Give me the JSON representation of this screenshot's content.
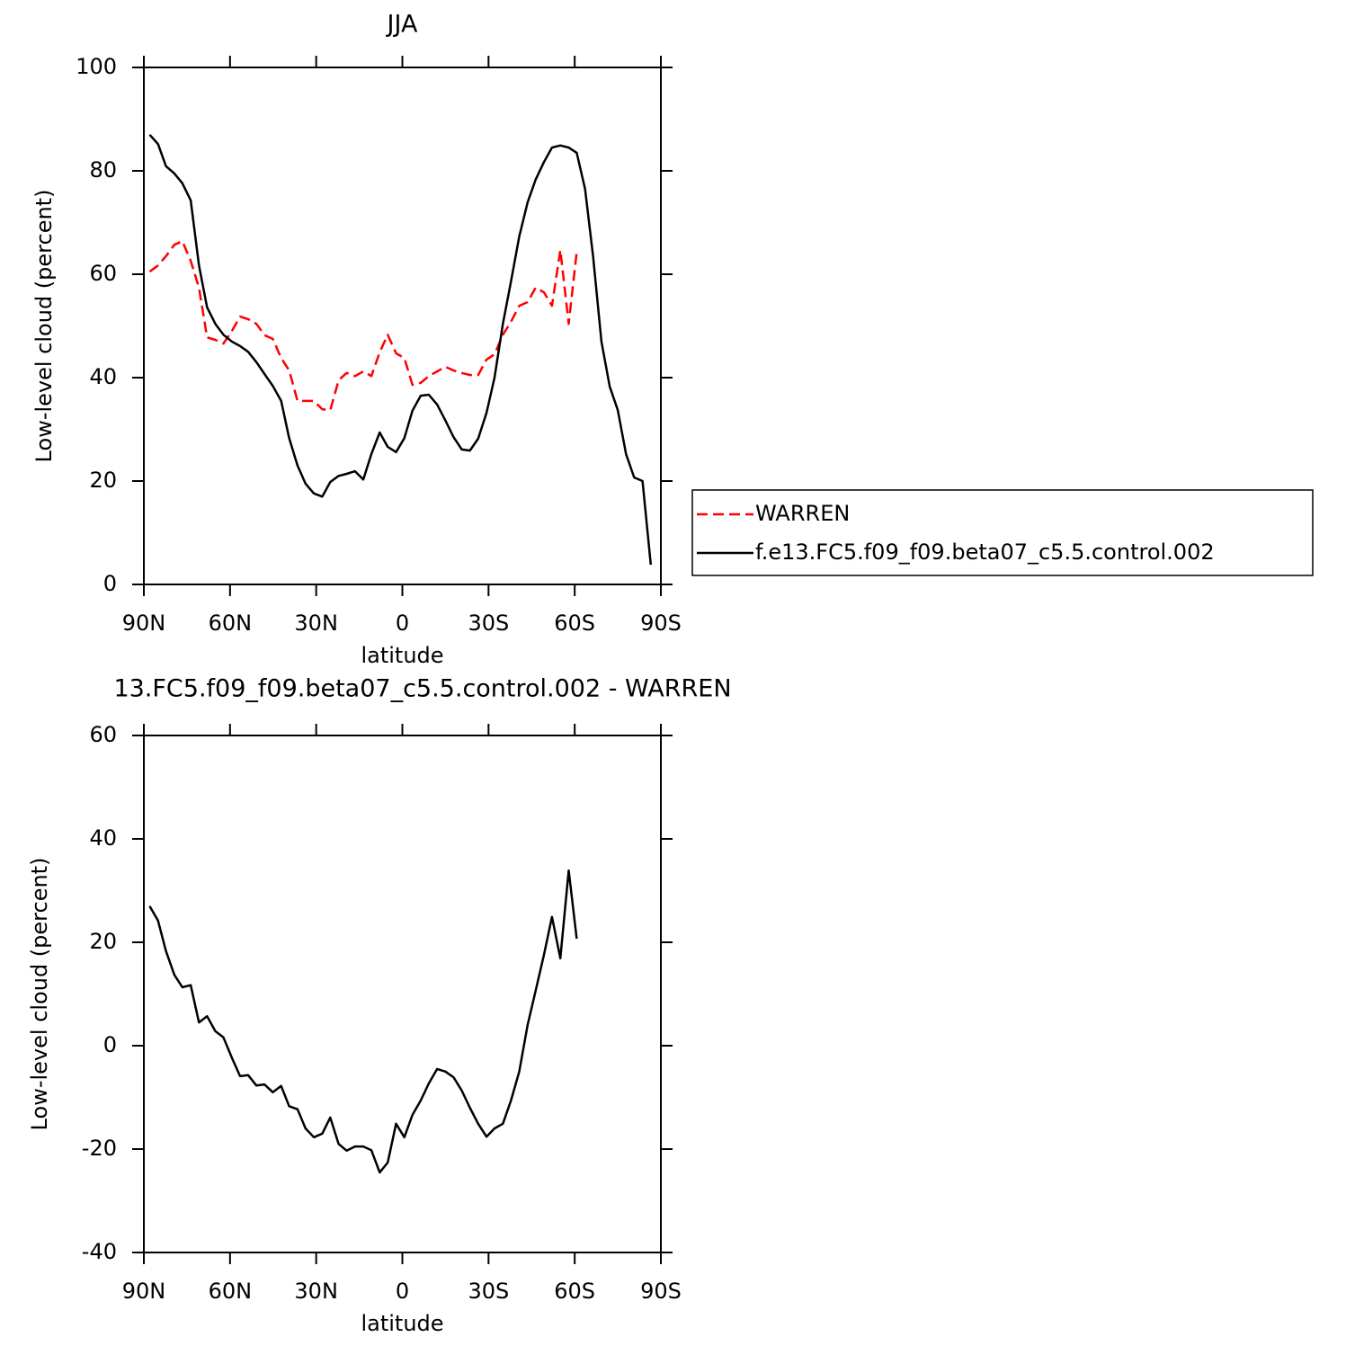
{
  "chart_data": [
    {
      "type": "line",
      "title": "JJA",
      "xlabel": "latitude",
      "ylabel": "Low-level cloud (percent)",
      "x": [
        88.0,
        85.1,
        82.3,
        79.4,
        76.6,
        73.7,
        70.8,
        68.0,
        65.1,
        62.3,
        59.4,
        56.5,
        53.7,
        50.8,
        48.0,
        45.1,
        42.2,
        39.4,
        36.5,
        33.7,
        30.8,
        27.9,
        25.1,
        22.2,
        19.4,
        16.5,
        13.6,
        10.8,
        7.9,
        5.1,
        2.2,
        -0.7,
        -3.5,
        -6.4,
        -9.2,
        -12.1,
        -15.0,
        -17.8,
        -20.7,
        -23.5,
        -26.4,
        -29.3,
        -32.1,
        -35.0,
        -37.8,
        -40.7,
        -43.6,
        -46.4,
        -49.3,
        -52.1,
        -55.0,
        -57.9,
        -60.7,
        -63.6,
        -66.4,
        -69.3,
        -72.2,
        -75.0,
        -77.9,
        -80.7,
        -83.6,
        -86.5
      ],
      "series": [
        {
          "name": "WARREN",
          "color": "#ff0000",
          "dashed": true,
          "values": [
            60.5,
            61.7,
            63.5,
            65.7,
            66.4,
            62.6,
            57.4,
            47.8,
            47.3,
            46.6,
            49.0,
            51.8,
            51.3,
            50.4,
            48.2,
            47.5,
            43.8,
            41.4,
            35.5,
            35.5,
            35.5,
            33.9,
            33.7,
            39.5,
            40.9,
            40.3,
            41.2,
            40.3,
            44.9,
            48.3,
            44.7,
            43.8,
            38.6,
            39.0,
            40.3,
            41.2,
            42.1,
            41.4,
            40.9,
            40.5,
            40.5,
            43.5,
            44.5,
            48.3,
            50.8,
            53.9,
            54.6,
            57.4,
            56.5,
            53.9,
            64.7,
            50.4,
            64.3,
            null,
            null,
            null,
            null,
            null,
            null,
            null,
            null,
            null
          ]
        },
        {
          "name": "f.e13.FC5.f09_f09.beta07_c5.5.control.002",
          "color": "#000000",
          "dashed": false,
          "values": [
            87.0,
            85.2,
            80.9,
            79.5,
            77.6,
            74.3,
            61.7,
            53.6,
            50.4,
            48.3,
            47.0,
            46.1,
            45.0,
            43.0,
            40.7,
            38.4,
            35.5,
            28.3,
            23.0,
            19.5,
            17.6,
            17.0,
            19.8,
            21.0,
            21.4,
            21.9,
            20.3,
            25.2,
            29.4,
            26.6,
            25.6,
            28.3,
            33.6,
            36.5,
            36.7,
            34.8,
            31.7,
            28.5,
            26.1,
            25.9,
            28.2,
            33.2,
            40.0,
            50.4,
            58.6,
            67.3,
            73.9,
            78.3,
            81.7,
            84.5,
            84.9,
            84.5,
            83.5,
            76.5,
            63.5,
            47.0,
            38.3,
            33.7,
            25.2,
            20.7,
            20.0,
            3.8
          ]
        }
      ],
      "xlim": [
        90,
        -90
      ],
      "xticks": [
        {
          "value": 90,
          "label": "90N"
        },
        {
          "value": 60,
          "label": "60N"
        },
        {
          "value": 30,
          "label": "30N"
        },
        0,
        {
          "value": -30,
          "label": "30S"
        },
        {
          "value": -60,
          "label": "60S"
        },
        {
          "value": -90,
          "label": "90S"
        }
      ],
      "ylim": [
        0,
        100
      ],
      "yticks": [
        0,
        20,
        40,
        60,
        80,
        100
      ],
      "legend": "right"
    },
    {
      "type": "line",
      "title": "13.FC5.f09_f09.beta07_c5.5.control.002 - WARREN",
      "xlabel": "latitude",
      "ylabel": "Low-level cloud (percent)",
      "x": [
        88.0,
        85.1,
        82.3,
        79.4,
        76.6,
        73.7,
        70.8,
        68.0,
        65.1,
        62.3,
        59.4,
        56.5,
        53.7,
        50.8,
        48.0,
        45.1,
        42.2,
        39.4,
        36.5,
        33.7,
        30.8,
        27.9,
        25.1,
        22.2,
        19.4,
        16.5,
        13.6,
        10.8,
        7.9,
        5.1,
        2.2,
        -0.7,
        -3.5,
        -6.4,
        -9.2,
        -12.1,
        -15.0,
        -17.8,
        -20.7,
        -23.5,
        -26.4,
        -29.3,
        -32.1,
        -35.0,
        -37.8,
        -40.7,
        -43.6,
        -46.4,
        -49.3,
        -52.1,
        -55.0,
        -57.9,
        -60.7
      ],
      "series": [
        {
          "color": "#000000",
          "dashed": false,
          "values": [
            27.0,
            24.2,
            18.3,
            13.7,
            11.3,
            11.7,
            4.5,
            5.7,
            2.8,
            1.6,
            -2.3,
            -5.9,
            -5.7,
            -7.7,
            -7.5,
            -9.0,
            -7.8,
            -11.7,
            -12.3,
            -16.0,
            -17.7,
            -17.0,
            -13.9,
            -19.0,
            -20.3,
            -19.5,
            -19.5,
            -20.2,
            -24.5,
            -22.6,
            -15.1,
            -17.7,
            -13.4,
            -10.6,
            -7.3,
            -4.5,
            -5.0,
            -6.1,
            -8.7,
            -12.0,
            -15.1,
            -17.6,
            -16.0,
            -15.1,
            -10.6,
            -5.0,
            4.0,
            10.6,
            17.6,
            24.9,
            16.9,
            33.9,
            20.7
          ]
        }
      ],
      "xlim": [
        90,
        -90
      ],
      "xticks": [
        {
          "value": 90,
          "label": "90N"
        },
        {
          "value": 60,
          "label": "60N"
        },
        {
          "value": 30,
          "label": "30N"
        },
        0,
        {
          "value": -30,
          "label": "30S"
        },
        {
          "value": -60,
          "label": "60S"
        },
        {
          "value": -90,
          "label": "90S"
        }
      ],
      "ylim": [
        -40,
        60
      ],
      "yticks": [
        -40,
        -20,
        0,
        20,
        40,
        60
      ]
    }
  ]
}
